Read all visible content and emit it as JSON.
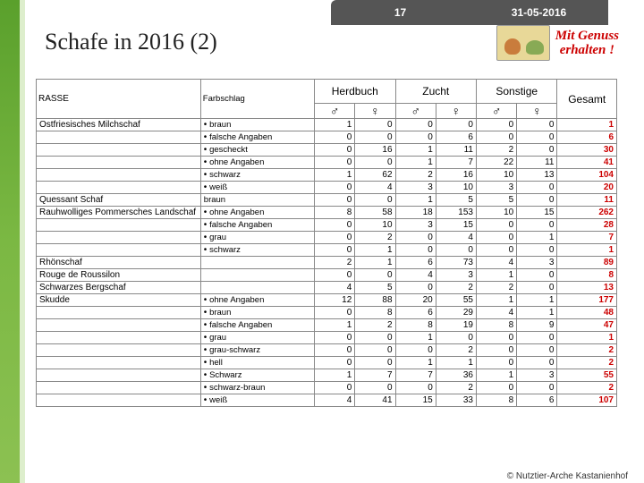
{
  "meta": {
    "page_number": "17",
    "date": "31-05-2016"
  },
  "title": "Schafe in 2016 (2)",
  "slogan": {
    "line1": "Mit Genuss",
    "line2": "erhalten !"
  },
  "headers": {
    "rasse": "RASSE",
    "farbschlag": "Farbschlag",
    "herdbuch": "Herdbuch",
    "zucht": "Zucht",
    "sonstige": "Sonstige",
    "gesamt": "Gesamt",
    "male": "♂",
    "female": "♀"
  },
  "rows": [
    {
      "rasse": "Ostfriesisches Milchschaf",
      "fs": "braun",
      "bullet": true,
      "h_m": 1,
      "h_f": 0,
      "z_m": 0,
      "z_f": 0,
      "s_m": 0,
      "s_f": 0,
      "g": 1
    },
    {
      "rasse": "",
      "fs": "falsche Angaben",
      "bullet": true,
      "h_m": 0,
      "h_f": 0,
      "z_m": 0,
      "z_f": 6,
      "s_m": 0,
      "s_f": 0,
      "g": 6
    },
    {
      "rasse": "",
      "fs": "gescheckt",
      "bullet": true,
      "h_m": 0,
      "h_f": 16,
      "z_m": 1,
      "z_f": 11,
      "s_m": 2,
      "s_f": 0,
      "g": 30
    },
    {
      "rasse": "",
      "fs": "ohne Angaben",
      "bullet": true,
      "h_m": 0,
      "h_f": 0,
      "z_m": 1,
      "z_f": 7,
      "s_m": 22,
      "s_f": 11,
      "g": 41
    },
    {
      "rasse": "",
      "fs": "schwarz",
      "bullet": true,
      "h_m": 1,
      "h_f": 62,
      "z_m": 2,
      "z_f": 16,
      "s_m": 10,
      "s_f": 13,
      "g": 104
    },
    {
      "rasse": "",
      "fs": "weiß",
      "bullet": true,
      "h_m": 0,
      "h_f": 4,
      "z_m": 3,
      "z_f": 10,
      "s_m": 3,
      "s_f": 0,
      "g": 20
    },
    {
      "rasse": "Quessant Schaf",
      "fs": "braun",
      "bullet": false,
      "h_m": 0,
      "h_f": 0,
      "z_m": 1,
      "z_f": 5,
      "s_m": 5,
      "s_f": 0,
      "g": 11
    },
    {
      "rasse": "Rauhwolliges Pommersches Landschaf",
      "fs": "ohne Angaben",
      "bullet": true,
      "h_m": 8,
      "h_f": 58,
      "z_m": 18,
      "z_f": 153,
      "s_m": 10,
      "s_f": 15,
      "g": 262
    },
    {
      "rasse": "",
      "fs": "falsche Angaben",
      "bullet": true,
      "h_m": 0,
      "h_f": 10,
      "z_m": 3,
      "z_f": 15,
      "s_m": 0,
      "s_f": 0,
      "g": 28
    },
    {
      "rasse": "",
      "fs": "grau",
      "bullet": true,
      "h_m": 0,
      "h_f": 2,
      "z_m": 0,
      "z_f": 4,
      "s_m": 0,
      "s_f": 1,
      "g": 7
    },
    {
      "rasse": "",
      "fs": "schwarz",
      "bullet": true,
      "h_m": 0,
      "h_f": 1,
      "z_m": 0,
      "z_f": 0,
      "s_m": 0,
      "s_f": 0,
      "g": 1
    },
    {
      "rasse": "Rhönschaf",
      "fs": "",
      "bullet": false,
      "h_m": 2,
      "h_f": 1,
      "z_m": 6,
      "z_f": 73,
      "s_m": 4,
      "s_f": 3,
      "g": 89
    },
    {
      "rasse": "Rouge de Roussilon",
      "fs": "",
      "bullet": false,
      "h_m": 0,
      "h_f": 0,
      "z_m": 4,
      "z_f": 3,
      "s_m": 1,
      "s_f": 0,
      "g": 8
    },
    {
      "rasse": "Schwarzes Bergschaf",
      "fs": "",
      "bullet": false,
      "h_m": 4,
      "h_f": 5,
      "z_m": 0,
      "z_f": 2,
      "s_m": 2,
      "s_f": 0,
      "g": 13
    },
    {
      "rasse": "Skudde",
      "fs": "ohne Angaben",
      "bullet": true,
      "h_m": 12,
      "h_f": 88,
      "z_m": 20,
      "z_f": 55,
      "s_m": 1,
      "s_f": 1,
      "g": 177
    },
    {
      "rasse": "",
      "fs": "braun",
      "bullet": true,
      "h_m": 0,
      "h_f": 8,
      "z_m": 6,
      "z_f": 29,
      "s_m": 4,
      "s_f": 1,
      "g": 48
    },
    {
      "rasse": "",
      "fs": "falsche Angaben",
      "bullet": true,
      "h_m": 1,
      "h_f": 2,
      "z_m": 8,
      "z_f": 19,
      "s_m": 8,
      "s_f": 9,
      "g": 47
    },
    {
      "rasse": "",
      "fs": "grau",
      "bullet": true,
      "h_m": 0,
      "h_f": 0,
      "z_m": 1,
      "z_f": 0,
      "s_m": 0,
      "s_f": 0,
      "g": 1
    },
    {
      "rasse": "",
      "fs": "grau-schwarz",
      "bullet": true,
      "h_m": 0,
      "h_f": 0,
      "z_m": 0,
      "z_f": 2,
      "s_m": 0,
      "s_f": 0,
      "g": 2
    },
    {
      "rasse": "",
      "fs": "hell",
      "bullet": true,
      "h_m": 0,
      "h_f": 0,
      "z_m": 1,
      "z_f": 1,
      "s_m": 0,
      "s_f": 0,
      "g": 2
    },
    {
      "rasse": "",
      "fs": "Schwarz",
      "bullet": true,
      "h_m": 1,
      "h_f": 7,
      "z_m": 7,
      "z_f": 36,
      "s_m": 1,
      "s_f": 3,
      "g": 55
    },
    {
      "rasse": "",
      "fs": "schwarz-braun",
      "bullet": true,
      "h_m": 0,
      "h_f": 0,
      "z_m": 0,
      "z_f": 2,
      "s_m": 0,
      "s_f": 0,
      "g": 2
    },
    {
      "rasse": "",
      "fs": "weiß",
      "bullet": true,
      "h_m": 4,
      "h_f": 41,
      "z_m": 15,
      "z_f": 33,
      "s_m": 8,
      "s_f": 6,
      "g": 107
    }
  ],
  "copyright": "© Nutztier-Arche Kastanienhof",
  "colors": {
    "accent_green": "#5aa02c",
    "header_gray": "#555555",
    "gesamt_red": "#c00000",
    "slogan_red": "#cc0000",
    "border": "#888888",
    "bg": "#ffffff"
  },
  "typography": {
    "title_size_pt": 20,
    "table_size_pt": 7.5,
    "header_size_pt": 9
  }
}
